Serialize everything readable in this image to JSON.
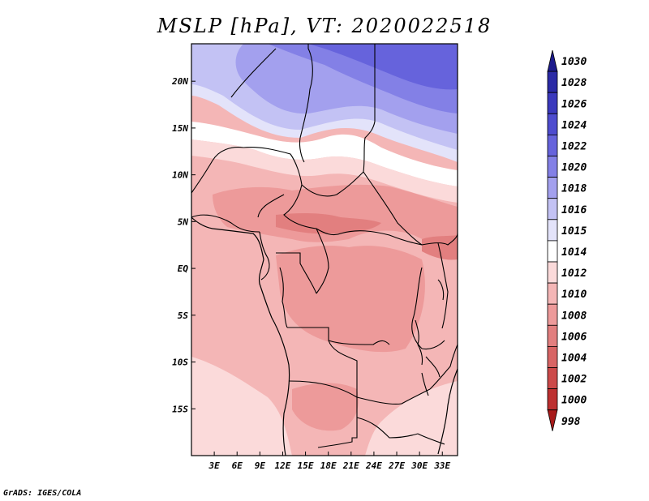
{
  "title": "MSLP [hPa], VT: 2020022518",
  "footer": "GrADS: IGES/COLA",
  "map": {
    "variable": "MSLP",
    "units": "hPa",
    "valid_time": "2020022518",
    "lon_range": [
      0,
      35
    ],
    "lat_range": [
      -20,
      24
    ],
    "lon_ticks": [
      "3E",
      "6E",
      "9E",
      "12E",
      "15E",
      "18E",
      "21E",
      "24E",
      "27E",
      "30E",
      "33E"
    ],
    "lat_ticks": [
      "20N",
      "15N",
      "10N",
      "5N",
      "EQ",
      "5S",
      "10S",
      "15S"
    ],
    "colorbar_levels": [
      "1030",
      "1028",
      "1026",
      "1024",
      "1022",
      "1020",
      "1018",
      "1016",
      "1015",
      "1014",
      "1012",
      "1010",
      "1008",
      "1006",
      "1004",
      "1002",
      "1000",
      "998"
    ],
    "colors": {
      "c1030": "#1c1a8c",
      "c1028": "#2b2aa6",
      "c1026": "#3b39bd",
      "c1024": "#4e4ccf",
      "c1022": "#6663dc",
      "c1020": "#8380e6",
      "c1018": "#a3a0ee",
      "c1016": "#c3c2f4",
      "c1015": "#e3e3fa",
      "c1014": "#ffffff",
      "c1012": "#fbdada",
      "c1010": "#f4b6b6",
      "c1008": "#ed9a9a",
      "c1006": "#e27f7f",
      "c1004": "#d86565",
      "c1002": "#cc4a4a",
      "c1000": "#bd3030",
      "c998": "#a81a1a"
    }
  }
}
